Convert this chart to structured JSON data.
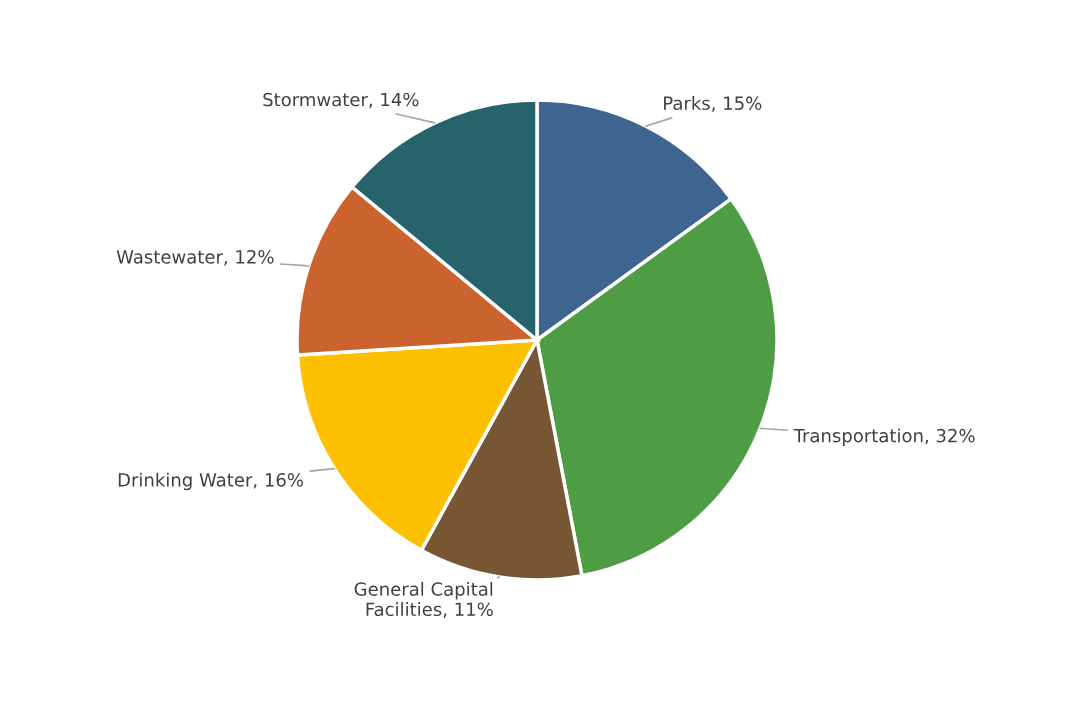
{
  "chart_data": {
    "type": "pie",
    "categories": [
      "Parks",
      "Transportation",
      "General Capital Facilities",
      "Drinking Water",
      "Wastewater",
      "Stormwater"
    ],
    "values": [
      15,
      32,
      11,
      16,
      12,
      14
    ],
    "value_labels": [
      "15%",
      "32%",
      "11%",
      "16%",
      "12%",
      "14%"
    ],
    "colors": [
      "#3e6490",
      "#4e9c43",
      "#765633",
      "#fdc000",
      "#cb632e",
      "#27636b"
    ],
    "legend": false
  }
}
